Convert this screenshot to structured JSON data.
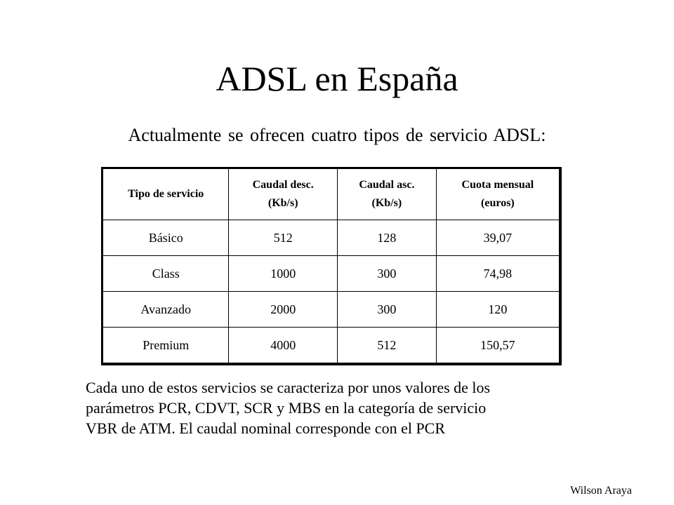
{
  "slide": {
    "title": "ADSL en España",
    "subtitle": "Actualmente se ofrecen cuatro tipos de servicio ADSL:",
    "author": "Wilson Araya"
  },
  "table": {
    "headers": [
      {
        "line1": "Tipo de servicio",
        "line2": ""
      },
      {
        "line1": "Caudal desc.",
        "line2": "(Kb/s)"
      },
      {
        "line1": "Caudal asc.",
        "line2": "(Kb/s)"
      },
      {
        "line1": "Cuota mensual",
        "line2": "(euros)"
      }
    ],
    "rows": [
      [
        "Básico",
        "512",
        "128",
        "39,07"
      ],
      [
        "Class",
        "1000",
        "300",
        "74,98"
      ],
      [
        "Avanzado",
        "2000",
        "300",
        "120"
      ],
      [
        "Premium",
        "4000",
        "512",
        "150,57"
      ]
    ]
  },
  "paragraph": {
    "lines": [
      "Cada uno de estos servicios se caracteriza por unos valores de los",
      "parámetros PCR, CDVT, SCR y MBS en la categoría de servicio",
      "VBR de ATM. El caudal nominal corresponde con el PCR"
    ]
  }
}
